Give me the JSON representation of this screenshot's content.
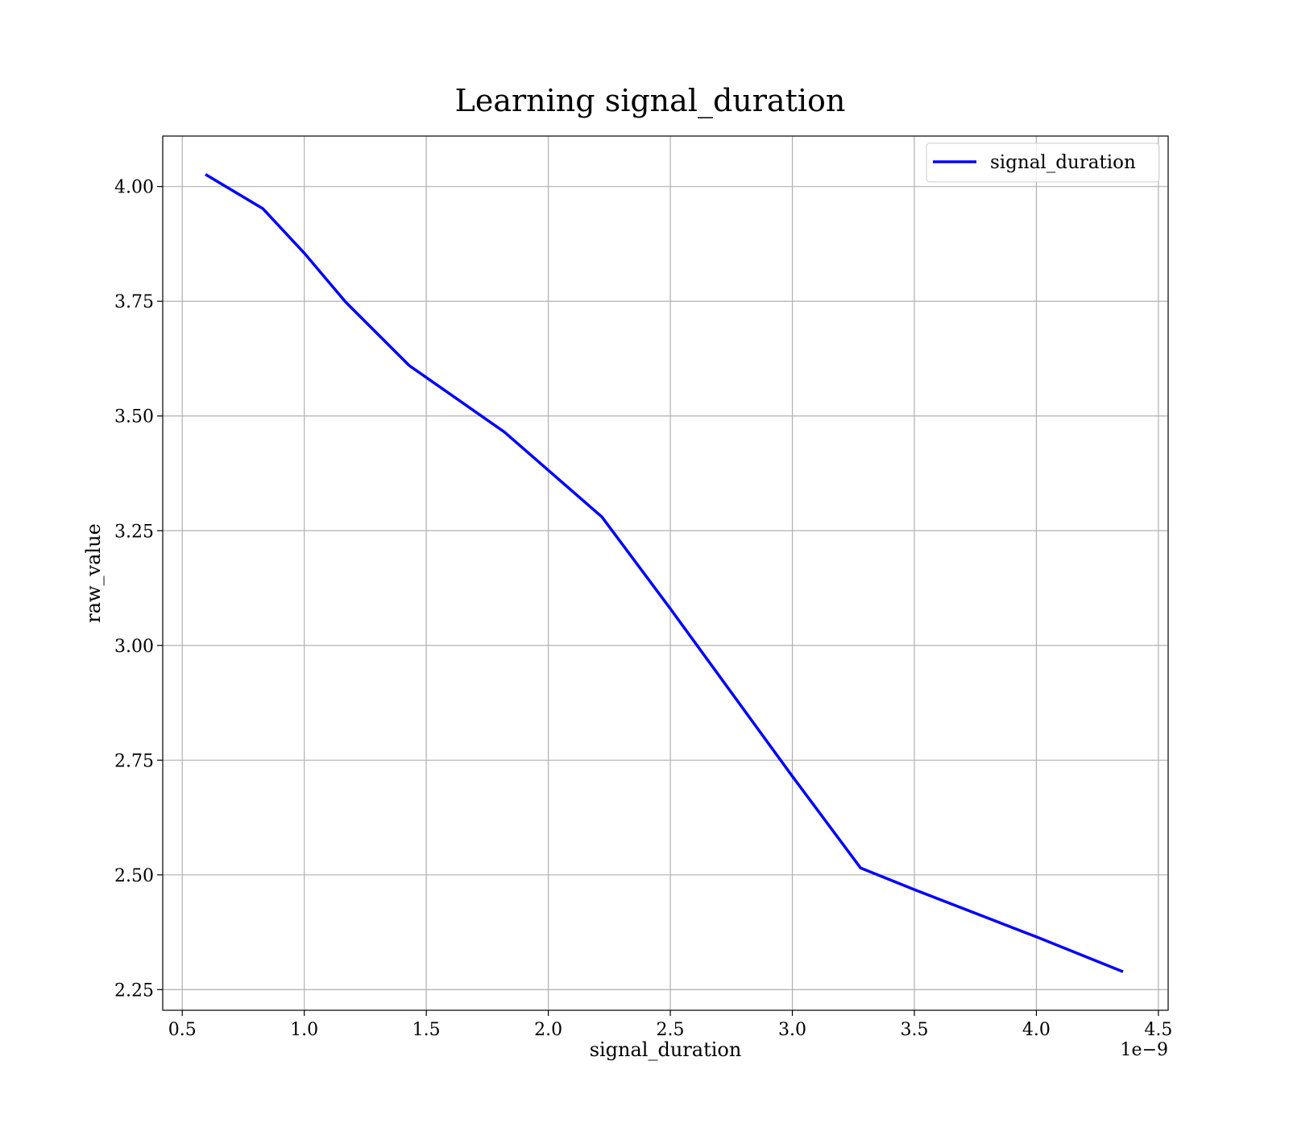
{
  "chart_data": {
    "type": "line",
    "title": "Learning signal_duration",
    "xlabel": "signal_duration",
    "ylabel": "raw_value",
    "x_offset_label": "1e−9",
    "x_tick_labels": [
      "0.5",
      "1.0",
      "1.5",
      "2.0",
      "2.5",
      "3.0",
      "3.5",
      "4.0",
      "4.5"
    ],
    "y_tick_labels": [
      "2.25",
      "2.50",
      "2.75",
      "3.00",
      "3.25",
      "3.50",
      "3.75",
      "4.00"
    ],
    "xlim": [
      4.2e-10,
      4.54e-09
    ],
    "ylim": [
      2.205,
      4.11
    ],
    "grid": true,
    "legend_position": "top-right",
    "series": [
      {
        "name": "signal_duration",
        "color": "#0000ff",
        "x": [
          6e-10,
          8.3e-10,
          1e-09,
          1.17e-09,
          1.43e-09,
          1.82e-09,
          2.22e-09,
          2.5e-09,
          3e-09,
          3.28e-09,
          3.5e-09,
          4e-09,
          4.35e-09
        ],
        "y": [
          4.025,
          3.952,
          3.855,
          3.748,
          3.61,
          3.465,
          3.28,
          3.08,
          2.715,
          2.515,
          2.468,
          2.365,
          2.29
        ]
      }
    ]
  }
}
